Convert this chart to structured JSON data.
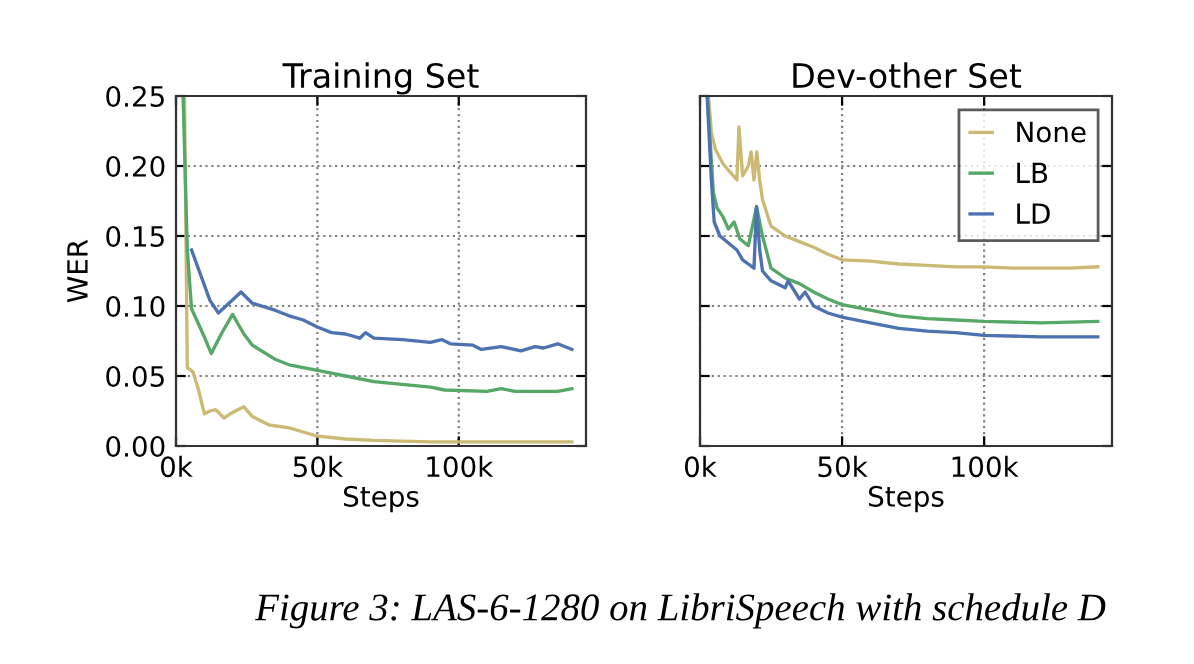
{
  "chart_data": [
    {
      "type": "line",
      "title": "Training Set",
      "xlabel": "Steps",
      "ylabel": "WER",
      "xlim": [
        0,
        145000
      ],
      "xticks": [
        {
          "value": 0,
          "label": "0k"
        },
        {
          "value": 50000,
          "label": "50k"
        },
        {
          "value": 100000,
          "label": "100k"
        }
      ],
      "ylim": [
        0,
        0.25
      ],
      "yticks": [
        {
          "value": 0,
          "label": "0.00"
        },
        {
          "value": 0.05,
          "label": "0.05"
        },
        {
          "value": 0.1,
          "label": "0.10"
        },
        {
          "value": 0.15,
          "label": "0.15"
        },
        {
          "value": 0.2,
          "label": "0.20"
        },
        {
          "value": 0.25,
          "label": "0.25"
        }
      ],
      "grid": true,
      "annotations": [
        "Figure 3: LAS-6-1280 on LibriSpeech with schedule D"
      ],
      "series": [
        {
          "color": "#ccb974",
          "x": [
            3000,
            4000,
            6000,
            8000,
            10000,
            12000,
            14000,
            17000,
            20000,
            24000,
            27000,
            33000,
            40000,
            45000,
            50000,
            60000,
            70000,
            90000,
            140000
          ],
          "values": [
            0.25,
            0.056,
            0.053,
            0.04,
            0.023,
            0.025,
            0.026,
            0.02,
            0.024,
            0.028,
            0.021,
            0.015,
            0.013,
            0.01,
            0.007,
            0.005,
            0.004,
            0.003,
            0.003
          ]
        },
        {
          "color": "#55a868",
          "x": [
            2500,
            4000,
            5500,
            10000,
            12500,
            16000,
            20000,
            24000,
            27000,
            35000,
            40000,
            50000,
            60000,
            70000,
            80000,
            90000,
            95000,
            110000,
            115000,
            120000,
            130000,
            135000,
            140000
          ],
          "values": [
            0.25,
            0.14,
            0.098,
            0.078,
            0.066,
            0.08,
            0.094,
            0.08,
            0.072,
            0.062,
            0.058,
            0.054,
            0.05,
            0.046,
            0.044,
            0.042,
            0.04,
            0.039,
            0.041,
            0.039,
            0.039,
            0.039,
            0.041
          ]
        },
        {
          "color": "#4c72b0",
          "x": [
            5500,
            12000,
            15000,
            23000,
            27000,
            35000,
            40000,
            45000,
            50000,
            55000,
            60000,
            65000,
            67000,
            70000,
            80000,
            90000,
            94000,
            97000,
            105000,
            108000,
            115000,
            122000,
            127000,
            130000,
            135000,
            140000
          ],
          "values": [
            0.14,
            0.104,
            0.095,
            0.11,
            0.102,
            0.097,
            0.093,
            0.09,
            0.085,
            0.081,
            0.08,
            0.077,
            0.081,
            0.077,
            0.076,
            0.074,
            0.076,
            0.073,
            0.072,
            0.069,
            0.071,
            0.068,
            0.071,
            0.07,
            0.073,
            0.069
          ]
        }
      ]
    },
    {
      "type": "line",
      "title": "Dev-other Set",
      "xlabel": "Steps",
      "xlim": [
        0,
        145000
      ],
      "xticks": [
        {
          "value": 0,
          "label": "0k"
        },
        {
          "value": 50000,
          "label": "50k"
        },
        {
          "value": 100000,
          "label": "100k"
        }
      ],
      "ylim": [
        0,
        0.25
      ],
      "yticks": [
        {
          "value": 0,
          "label": null
        },
        {
          "value": 0.05,
          "label": null
        },
        {
          "value": 0.1,
          "label": null
        },
        {
          "value": 0.15,
          "label": null
        },
        {
          "value": 0.2,
          "label": null
        },
        {
          "value": 0.25,
          "label": null
        }
      ],
      "tick_labels": "x",
      "grid": true,
      "legend": "top right",
      "series": [
        {
          "name": "None",
          "color": "#ccb974",
          "x": [
            3000,
            4000,
            5400,
            8000,
            10000,
            13000,
            13700,
            15000,
            17000,
            18000,
            19000,
            20000,
            21000,
            22000,
            25000,
            30000,
            35000,
            40000,
            45000,
            50000,
            60000,
            70000,
            80000,
            90000,
            100000,
            110000,
            120000,
            130000,
            140000
          ],
          "values": [
            0.25,
            0.224,
            0.212,
            0.202,
            0.197,
            0.19,
            0.228,
            0.193,
            0.2,
            0.21,
            0.19,
            0.21,
            0.19,
            0.176,
            0.157,
            0.15,
            0.146,
            0.142,
            0.137,
            0.133,
            0.132,
            0.13,
            0.129,
            0.128,
            0.128,
            0.127,
            0.127,
            0.127,
            0.128
          ]
        },
        {
          "name": "LB",
          "color": "#55a868",
          "x": [
            2600,
            4700,
            6000,
            8000,
            10000,
            12000,
            14000,
            17000,
            19900,
            22000,
            25000,
            30000,
            35000,
            40000,
            45000,
            50000,
            60000,
            70000,
            80000,
            90000,
            100000,
            120000,
            140000
          ],
          "values": [
            0.25,
            0.181,
            0.17,
            0.164,
            0.155,
            0.16,
            0.148,
            0.143,
            0.171,
            0.15,
            0.127,
            0.12,
            0.116,
            0.11,
            0.105,
            0.101,
            0.097,
            0.093,
            0.091,
            0.09,
            0.089,
            0.088,
            0.089
          ]
        },
        {
          "name": "LD",
          "color": "#4c72b0",
          "x": [
            2500,
            4000,
            5000,
            7000,
            10000,
            13000,
            15000,
            17000,
            19000,
            19900,
            21000,
            22000,
            25000,
            30000,
            31000,
            35000,
            37000,
            40000,
            45000,
            50000,
            60000,
            70000,
            80000,
            90000,
            100000,
            120000,
            140000
          ],
          "values": [
            0.25,
            0.19,
            0.16,
            0.15,
            0.145,
            0.14,
            0.133,
            0.13,
            0.127,
            0.171,
            0.14,
            0.125,
            0.118,
            0.113,
            0.118,
            0.105,
            0.11,
            0.1,
            0.095,
            0.092,
            0.088,
            0.084,
            0.082,
            0.081,
            0.079,
            0.078,
            0.078
          ]
        }
      ]
    }
  ]
}
